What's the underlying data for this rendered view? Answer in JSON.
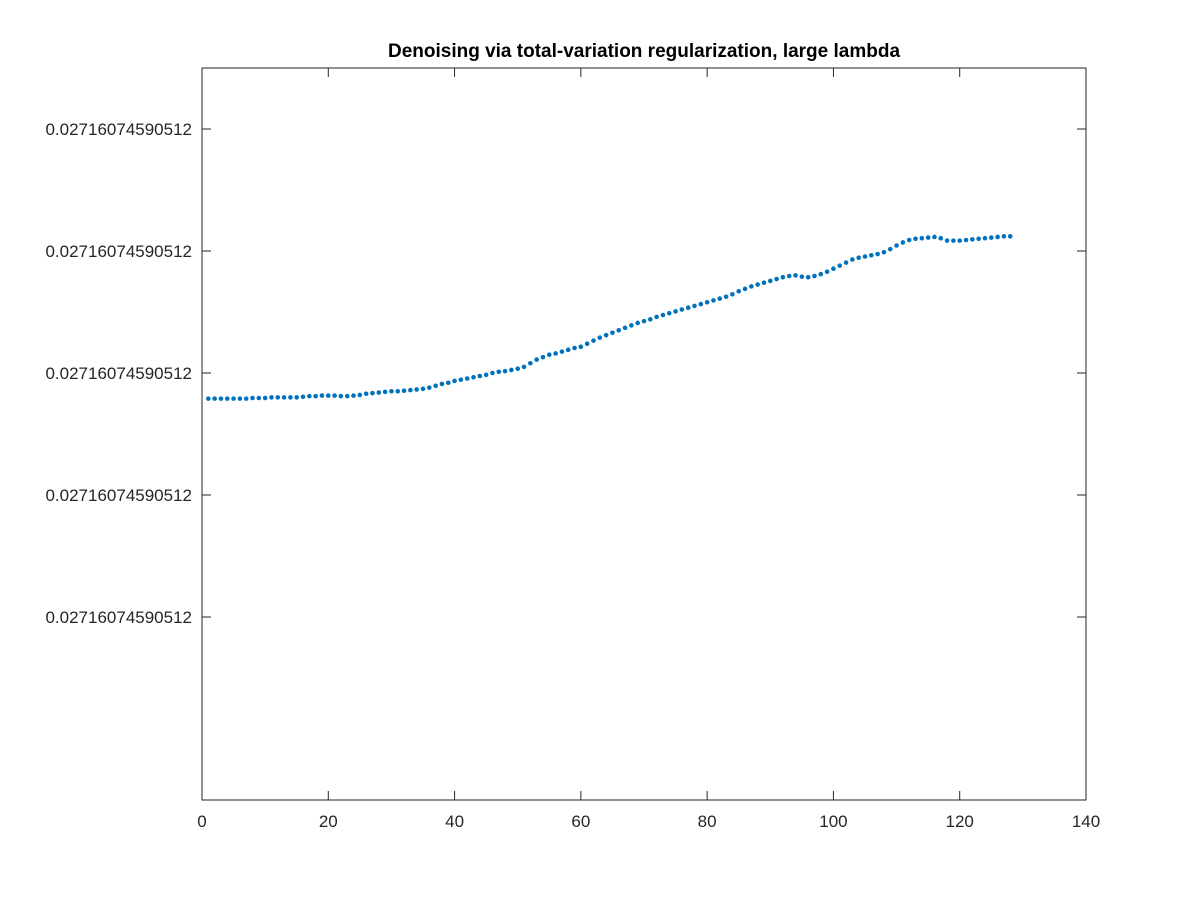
{
  "chart_data": {
    "type": "scatter",
    "title": "Denoising via total-variation regularization, large lambda",
    "xlabel": "",
    "ylabel": "",
    "xlim": [
      0,
      140
    ],
    "ylim_offset": [
      -0.5,
      5.5
    ],
    "y_base_label": "0.0271607459051",
    "xticks": [
      0,
      20,
      40,
      60,
      80,
      100,
      120,
      140
    ],
    "xtick_labels": [
      "0",
      "20",
      "40",
      "60",
      "80",
      "100",
      "120",
      "140"
    ],
    "yticks": [
      1,
      2,
      3,
      4,
      5
    ],
    "ytick_labels": [
      "0.02716074590512",
      "0.02716074590512",
      "0.02716074590512",
      "0.02716074590512",
      "0.02716074590512"
    ],
    "grid": false,
    "marker_color": "#0072BD",
    "series": [
      {
        "name": "",
        "x": [
          1,
          2,
          3,
          4,
          5,
          6,
          7,
          8,
          9,
          10,
          11,
          12,
          13,
          14,
          15,
          16,
          17,
          18,
          19,
          20,
          21,
          22,
          23,
          24,
          25,
          26,
          27,
          28,
          29,
          30,
          31,
          32,
          33,
          34,
          35,
          36,
          37,
          38,
          39,
          40,
          41,
          42,
          43,
          44,
          45,
          46,
          47,
          48,
          49,
          50,
          51,
          52,
          53,
          54,
          55,
          56,
          57,
          58,
          59,
          60,
          61,
          62,
          63,
          64,
          65,
          66,
          67,
          68,
          69,
          70,
          71,
          72,
          73,
          74,
          75,
          76,
          77,
          78,
          79,
          80,
          81,
          82,
          83,
          84,
          85,
          86,
          87,
          88,
          89,
          90,
          91,
          92,
          93,
          94,
          95,
          96,
          97,
          98,
          99,
          100,
          101,
          102,
          103,
          104,
          105,
          106,
          107,
          108,
          109,
          110,
          111,
          112,
          113,
          114,
          115,
          116,
          117,
          118,
          119,
          120,
          121,
          122,
          123,
          124,
          125,
          126,
          127,
          128
        ],
        "y": [
          2.79,
          2.79,
          2.79,
          2.79,
          2.79,
          2.79,
          2.79,
          2.795,
          2.795,
          2.795,
          2.8,
          2.8,
          2.8,
          2.8,
          2.8,
          2.805,
          2.81,
          2.81,
          2.815,
          2.815,
          2.815,
          2.81,
          2.81,
          2.815,
          2.82,
          2.83,
          2.835,
          2.84,
          2.845,
          2.85,
          2.85,
          2.855,
          2.86,
          2.865,
          2.87,
          2.88,
          2.895,
          2.91,
          2.92,
          2.935,
          2.945,
          2.955,
          2.965,
          2.975,
          2.985,
          3.0,
          3.01,
          3.015,
          3.025,
          3.035,
          3.05,
          3.08,
          3.11,
          3.13,
          3.15,
          3.16,
          3.175,
          3.19,
          3.205,
          3.215,
          3.24,
          3.265,
          3.29,
          3.31,
          3.33,
          3.35,
          3.37,
          3.39,
          3.41,
          3.425,
          3.44,
          3.46,
          3.475,
          3.49,
          3.505,
          3.52,
          3.535,
          3.55,
          3.565,
          3.58,
          3.595,
          3.61,
          3.625,
          3.645,
          3.67,
          3.69,
          3.71,
          3.725,
          3.74,
          3.755,
          3.77,
          3.785,
          3.795,
          3.8,
          3.79,
          3.785,
          3.795,
          3.81,
          3.83,
          3.855,
          3.88,
          3.905,
          3.93,
          3.945,
          3.955,
          3.965,
          3.975,
          3.99,
          4.015,
          4.045,
          4.07,
          4.09,
          4.1,
          4.105,
          4.11,
          4.115,
          4.105,
          4.085,
          4.085,
          4.085,
          4.09,
          4.095,
          4.1,
          4.105,
          4.11,
          4.115,
          4.12,
          4.12
        ]
      }
    ]
  }
}
